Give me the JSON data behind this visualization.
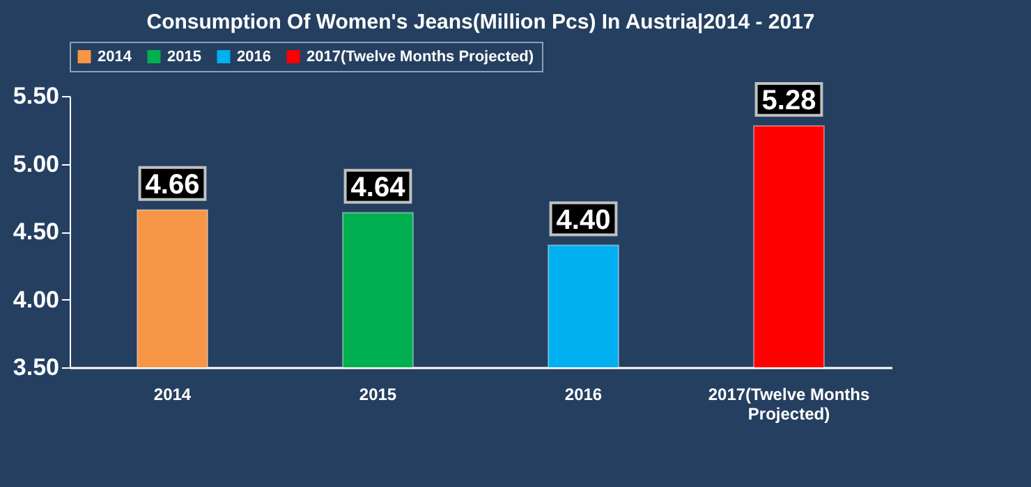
{
  "chart_data": {
    "type": "bar",
    "title": "Consumption Of Women's Jeans(Million Pcs) In Austria|2014 - 2017",
    "categories": [
      "2014",
      "2015",
      "2016",
      "2017(Twelve Months Projected)"
    ],
    "series": [
      {
        "name": "2014",
        "color": "#f79646",
        "values": [
          4.66,
          null,
          null,
          null
        ],
        "value_labels": [
          "4.66",
          null,
          null,
          null
        ]
      },
      {
        "name": "2015",
        "color": "#00b050",
        "values": [
          null,
          4.64,
          null,
          null
        ],
        "value_labels": [
          null,
          "4.64",
          null,
          null
        ]
      },
      {
        "name": "2016",
        "color": "#00b0f0",
        "values": [
          null,
          null,
          4.4,
          null
        ],
        "value_labels": [
          null,
          null,
          "4.40",
          null
        ]
      },
      {
        "name": "2017(Twelve Months Projected)",
        "color": "#ff0000",
        "values": [
          null,
          null,
          null,
          5.28
        ],
        "value_labels": [
          null,
          null,
          null,
          "5.28"
        ]
      }
    ],
    "ylim": [
      3.5,
      5.5
    ],
    "yticks": [
      {
        "value": 3.5,
        "label": "3.50"
      },
      {
        "value": 4.0,
        "label": "4.00"
      },
      {
        "value": 4.5,
        "label": "4.50"
      },
      {
        "value": 5.0,
        "label": "5.00"
      },
      {
        "value": 5.5,
        "label": "5.50"
      }
    ],
    "grid": false,
    "legend": "top"
  }
}
